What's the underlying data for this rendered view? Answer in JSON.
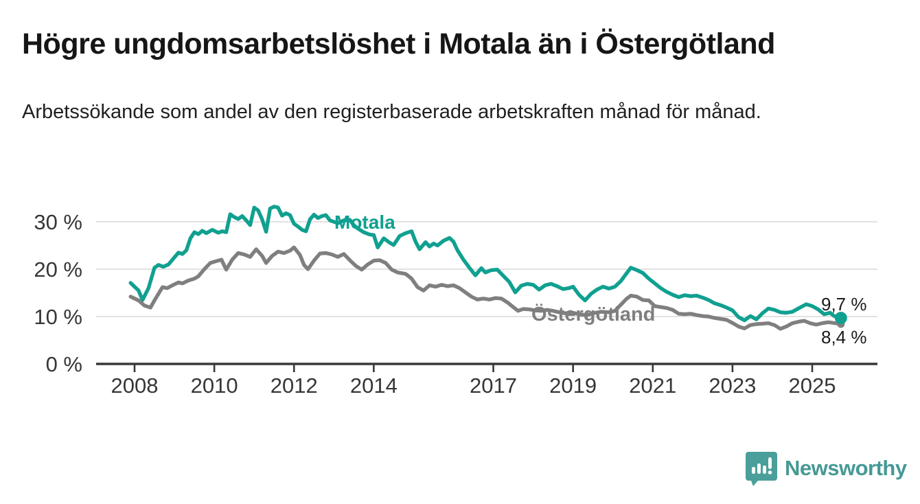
{
  "header": {
    "title": "Högre ungdomsarbetslöshet i Motala än i Östergötland",
    "subtitle": "Arbetssökande som andel av den registerbaserade arbetskraften månad för månad."
  },
  "annotations": {
    "motala": {
      "text": "Motala",
      "color": "#10a090"
    },
    "ostergotland": {
      "text": "Östergötland",
      "color": "#7f7f7f"
    },
    "end_labels": [
      {
        "text": "9,7 %",
        "series": "Motala"
      },
      {
        "text": "8,4 %",
        "series": "Östergötland"
      }
    ]
  },
  "footer": {
    "brand": "Newsworthy",
    "logo": "speech-bubble-bar-chart-icon",
    "color": "#459995"
  },
  "chart_data": {
    "type": "line",
    "title": "Högre ungdomsarbetslöshet i Motala än i Östergötland",
    "xlabel": "",
    "ylabel": "",
    "x_range": [
      2007.9,
      2026.3
    ],
    "y_range": [
      0,
      35
    ],
    "grid": "horizontal",
    "legend_position": "inline-labels",
    "y_ticks": [
      {
        "value": 0,
        "label": "0 %"
      },
      {
        "value": 10,
        "label": "10 %"
      },
      {
        "value": 20,
        "label": "20 %"
      },
      {
        "value": 30,
        "label": "30 %"
      }
    ],
    "x_ticks": [
      {
        "value": 2008,
        "label": "2008"
      },
      {
        "value": 2010,
        "label": "2010"
      },
      {
        "value": 2012,
        "label": "2012"
      },
      {
        "value": 2014,
        "label": "2014"
      },
      {
        "value": 2017,
        "label": "2017"
      },
      {
        "value": 2019,
        "label": "2019"
      },
      {
        "value": 2021,
        "label": "2021"
      },
      {
        "value": 2023,
        "label": "2023"
      },
      {
        "value": 2025,
        "label": "2025"
      }
    ],
    "series": [
      {
        "name": "Motala",
        "color": "#10a090",
        "end_value": 9.7,
        "end_dot_radius": 9,
        "points": [
          [
            2007.9,
            17.1
          ],
          [
            2008.1,
            15.5
          ],
          [
            2008.2,
            13.5
          ],
          [
            2008.35,
            16.0
          ],
          [
            2008.5,
            20.3
          ],
          [
            2008.6,
            20.9
          ],
          [
            2008.72,
            20.5
          ],
          [
            2008.85,
            21.0
          ],
          [
            2009.0,
            22.5
          ],
          [
            2009.1,
            23.5
          ],
          [
            2009.2,
            23.2
          ],
          [
            2009.3,
            24.0
          ],
          [
            2009.4,
            26.5
          ],
          [
            2009.5,
            27.8
          ],
          [
            2009.6,
            27.4
          ],
          [
            2009.7,
            28.1
          ],
          [
            2009.8,
            27.6
          ],
          [
            2009.95,
            28.3
          ],
          [
            2010.1,
            27.7
          ],
          [
            2010.2,
            28.0
          ],
          [
            2010.3,
            27.8
          ],
          [
            2010.4,
            31.6
          ],
          [
            2010.5,
            31.0
          ],
          [
            2010.6,
            30.6
          ],
          [
            2010.7,
            31.2
          ],
          [
            2010.8,
            30.3
          ],
          [
            2010.9,
            29.3
          ],
          [
            2011.0,
            33.0
          ],
          [
            2011.1,
            32.4
          ],
          [
            2011.2,
            30.5
          ],
          [
            2011.3,
            27.9
          ],
          [
            2011.4,
            32.8
          ],
          [
            2011.5,
            33.2
          ],
          [
            2011.6,
            33.0
          ],
          [
            2011.7,
            31.3
          ],
          [
            2011.8,
            31.8
          ],
          [
            2011.9,
            31.4
          ],
          [
            2012.0,
            29.6
          ],
          [
            2012.1,
            29.0
          ],
          [
            2012.2,
            28.3
          ],
          [
            2012.3,
            28.0
          ],
          [
            2012.4,
            30.5
          ],
          [
            2012.5,
            31.5
          ],
          [
            2012.6,
            30.8
          ],
          [
            2012.7,
            31.2
          ],
          [
            2012.8,
            31.4
          ],
          [
            2012.9,
            30.3
          ],
          [
            2013.0,
            30.0
          ],
          [
            2013.1,
            29.7
          ],
          [
            2013.25,
            30.3
          ],
          [
            2013.4,
            30.4
          ],
          [
            2013.5,
            29.3
          ],
          [
            2013.6,
            28.6
          ],
          [
            2013.75,
            27.8
          ],
          [
            2013.9,
            27.3
          ],
          [
            2014.0,
            27.2
          ],
          [
            2014.1,
            24.6
          ],
          [
            2014.25,
            26.5
          ],
          [
            2014.4,
            25.6
          ],
          [
            2014.5,
            25.1
          ],
          [
            2014.65,
            27.0
          ],
          [
            2014.8,
            27.6
          ],
          [
            2014.95,
            28.0
          ],
          [
            2015.05,
            25.8
          ],
          [
            2015.15,
            24.2
          ],
          [
            2015.3,
            25.7
          ],
          [
            2015.4,
            24.8
          ],
          [
            2015.5,
            25.4
          ],
          [
            2015.6,
            25.0
          ],
          [
            2015.75,
            26.0
          ],
          [
            2015.9,
            26.6
          ],
          [
            2016.0,
            25.8
          ],
          [
            2016.1,
            24.0
          ],
          [
            2016.25,
            22.0
          ],
          [
            2016.4,
            20.3
          ],
          [
            2016.55,
            18.7
          ],
          [
            2016.7,
            20.2
          ],
          [
            2016.8,
            19.3
          ],
          [
            2016.95,
            19.8
          ],
          [
            2017.1,
            19.9
          ],
          [
            2017.25,
            18.6
          ],
          [
            2017.4,
            17.3
          ],
          [
            2017.55,
            15.1
          ],
          [
            2017.7,
            16.5
          ],
          [
            2017.85,
            16.9
          ],
          [
            2018.0,
            16.7
          ],
          [
            2018.15,
            15.7
          ],
          [
            2018.3,
            16.6
          ],
          [
            2018.45,
            16.9
          ],
          [
            2018.6,
            16.4
          ],
          [
            2018.75,
            15.8
          ],
          [
            2018.9,
            16.0
          ],
          [
            2019.0,
            16.3
          ],
          [
            2019.15,
            14.6
          ],
          [
            2019.3,
            13.4
          ],
          [
            2019.45,
            14.8
          ],
          [
            2019.6,
            15.7
          ],
          [
            2019.75,
            16.3
          ],
          [
            2019.9,
            15.9
          ],
          [
            2020.05,
            16.3
          ],
          [
            2020.2,
            17.5
          ],
          [
            2020.35,
            19.2
          ],
          [
            2020.45,
            20.3
          ],
          [
            2020.6,
            19.8
          ],
          [
            2020.75,
            19.2
          ],
          [
            2020.9,
            18.0
          ],
          [
            2021.05,
            17.0
          ],
          [
            2021.2,
            16.0
          ],
          [
            2021.35,
            15.2
          ],
          [
            2021.5,
            14.6
          ],
          [
            2021.65,
            14.1
          ],
          [
            2021.8,
            14.5
          ],
          [
            2021.95,
            14.3
          ],
          [
            2022.1,
            14.4
          ],
          [
            2022.25,
            14.0
          ],
          [
            2022.4,
            13.5
          ],
          [
            2022.55,
            12.8
          ],
          [
            2022.7,
            12.4
          ],
          [
            2022.85,
            11.9
          ],
          [
            2023.0,
            11.3
          ],
          [
            2023.15,
            9.9
          ],
          [
            2023.3,
            9.2
          ],
          [
            2023.45,
            10.1
          ],
          [
            2023.6,
            9.4
          ],
          [
            2023.75,
            10.7
          ],
          [
            2023.9,
            11.7
          ],
          [
            2024.05,
            11.4
          ],
          [
            2024.2,
            10.9
          ],
          [
            2024.35,
            10.8
          ],
          [
            2024.5,
            11.0
          ],
          [
            2024.65,
            11.7
          ],
          [
            2024.85,
            12.6
          ],
          [
            2025.0,
            12.2
          ],
          [
            2025.15,
            11.5
          ],
          [
            2025.3,
            10.5
          ],
          [
            2025.45,
            10.8
          ],
          [
            2025.55,
            10.1
          ],
          [
            2025.72,
            9.7
          ]
        ]
      },
      {
        "name": "Östergötland",
        "color": "#7f7f7f",
        "end_value": 8.4,
        "end_dot_radius": 5.5,
        "points": [
          [
            2007.9,
            14.2
          ],
          [
            2008.1,
            13.4
          ],
          [
            2008.25,
            12.3
          ],
          [
            2008.4,
            11.9
          ],
          [
            2008.5,
            13.4
          ],
          [
            2008.6,
            14.8
          ],
          [
            2008.7,
            16.2
          ],
          [
            2008.82,
            16.0
          ],
          [
            2008.95,
            16.6
          ],
          [
            2009.1,
            17.2
          ],
          [
            2009.2,
            17.0
          ],
          [
            2009.35,
            17.6
          ],
          [
            2009.5,
            18.0
          ],
          [
            2009.6,
            18.5
          ],
          [
            2009.75,
            20.0
          ],
          [
            2009.9,
            21.3
          ],
          [
            2010.05,
            21.7
          ],
          [
            2010.18,
            22.0
          ],
          [
            2010.3,
            19.9
          ],
          [
            2010.45,
            22.0
          ],
          [
            2010.6,
            23.4
          ],
          [
            2010.75,
            23.1
          ],
          [
            2010.9,
            22.6
          ],
          [
            2011.05,
            24.2
          ],
          [
            2011.2,
            22.8
          ],
          [
            2011.3,
            21.3
          ],
          [
            2011.45,
            22.8
          ],
          [
            2011.6,
            23.7
          ],
          [
            2011.75,
            23.4
          ],
          [
            2011.9,
            23.9
          ],
          [
            2012.0,
            24.6
          ],
          [
            2012.15,
            23.0
          ],
          [
            2012.25,
            20.9
          ],
          [
            2012.35,
            20.0
          ],
          [
            2012.5,
            21.8
          ],
          [
            2012.65,
            23.3
          ],
          [
            2012.8,
            23.4
          ],
          [
            2012.95,
            23.1
          ],
          [
            2013.1,
            22.6
          ],
          [
            2013.25,
            23.2
          ],
          [
            2013.4,
            21.9
          ],
          [
            2013.55,
            20.7
          ],
          [
            2013.7,
            19.9
          ],
          [
            2013.85,
            21.0
          ],
          [
            2014.0,
            21.8
          ],
          [
            2014.15,
            21.9
          ],
          [
            2014.3,
            21.3
          ],
          [
            2014.45,
            19.9
          ],
          [
            2014.6,
            19.3
          ],
          [
            2014.8,
            19.0
          ],
          [
            2014.95,
            18.0
          ],
          [
            2015.1,
            16.2
          ],
          [
            2015.25,
            15.5
          ],
          [
            2015.4,
            16.6
          ],
          [
            2015.55,
            16.3
          ],
          [
            2015.7,
            16.7
          ],
          [
            2015.85,
            16.4
          ],
          [
            2016.0,
            16.6
          ],
          [
            2016.15,
            16.0
          ],
          [
            2016.3,
            15.1
          ],
          [
            2016.45,
            14.2
          ],
          [
            2016.6,
            13.6
          ],
          [
            2016.75,
            13.8
          ],
          [
            2016.9,
            13.6
          ],
          [
            2017.05,
            13.9
          ],
          [
            2017.2,
            13.8
          ],
          [
            2017.35,
            13.0
          ],
          [
            2017.5,
            12.0
          ],
          [
            2017.62,
            11.2
          ],
          [
            2017.75,
            11.6
          ],
          [
            2017.9,
            11.5
          ],
          [
            2018.05,
            11.3
          ],
          [
            2018.2,
            11.2
          ],
          [
            2018.35,
            11.4
          ],
          [
            2018.5,
            11.2
          ],
          [
            2018.65,
            10.9
          ],
          [
            2018.8,
            10.7
          ],
          [
            2019.0,
            10.8
          ],
          [
            2019.2,
            10.4
          ],
          [
            2019.35,
            10.3
          ],
          [
            2019.5,
            10.7
          ],
          [
            2019.7,
            11.0
          ],
          [
            2019.9,
            10.9
          ],
          [
            2020.05,
            11.2
          ],
          [
            2020.2,
            12.5
          ],
          [
            2020.35,
            13.8
          ],
          [
            2020.45,
            14.4
          ],
          [
            2020.6,
            14.2
          ],
          [
            2020.75,
            13.5
          ],
          [
            2020.9,
            13.4
          ],
          [
            2021.05,
            12.2
          ],
          [
            2021.2,
            12.0
          ],
          [
            2021.35,
            11.8
          ],
          [
            2021.5,
            11.4
          ],
          [
            2021.65,
            10.6
          ],
          [
            2021.8,
            10.5
          ],
          [
            2021.95,
            10.6
          ],
          [
            2022.1,
            10.3
          ],
          [
            2022.25,
            10.1
          ],
          [
            2022.4,
            10.0
          ],
          [
            2022.55,
            9.7
          ],
          [
            2022.7,
            9.5
          ],
          [
            2022.85,
            9.3
          ],
          [
            2023.05,
            8.4
          ],
          [
            2023.15,
            7.9
          ],
          [
            2023.3,
            7.5
          ],
          [
            2023.45,
            8.2
          ],
          [
            2023.6,
            8.4
          ],
          [
            2023.75,
            8.5
          ],
          [
            2023.9,
            8.6
          ],
          [
            2024.05,
            8.2
          ],
          [
            2024.2,
            7.4
          ],
          [
            2024.35,
            7.9
          ],
          [
            2024.5,
            8.6
          ],
          [
            2024.65,
            8.9
          ],
          [
            2024.8,
            9.1
          ],
          [
            2024.95,
            8.6
          ],
          [
            2025.1,
            8.3
          ],
          [
            2025.25,
            8.6
          ],
          [
            2025.4,
            8.8
          ],
          [
            2025.5,
            8.7
          ],
          [
            2025.72,
            8.4
          ]
        ]
      }
    ],
    "colors": {
      "grid": "#d8d8d8",
      "axis": "#383838",
      "tick_label": "#363636"
    }
  }
}
